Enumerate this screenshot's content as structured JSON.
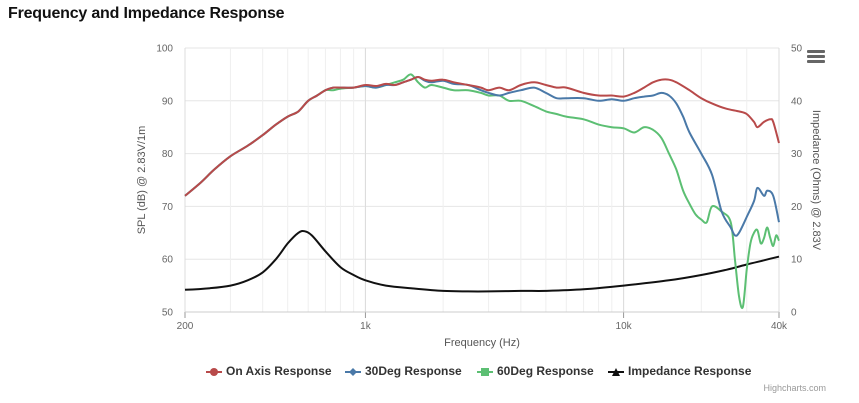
{
  "page": {
    "title": "Frequency and Impedance Response",
    "credits": "Highcharts.com"
  },
  "colors": {
    "on_axis": "#b84a4a",
    "deg30": "#4a79a8",
    "deg60": "#5cbf73",
    "impedance": "#111111",
    "grid": "#e6e6e6"
  },
  "icons": {
    "menu": "hamburger-menu-icon"
  },
  "chart_data": {
    "type": "line",
    "xlabel": "Frequency (Hz)",
    "ylabel": "SPL (dB) @ 2.83V/1m",
    "ylabel2": "Impedance (Ohms) @ 2.83V",
    "xscale": "log",
    "xlim": [
      200,
      40000
    ],
    "ylim": [
      50,
      100
    ],
    "ylim2": [
      0,
      50
    ],
    "xticks": [
      200,
      1000,
      10000,
      40000
    ],
    "xtick_labels": [
      "200",
      "1k",
      "10k",
      "40k"
    ],
    "yticks": [
      50,
      60,
      70,
      80,
      90,
      100
    ],
    "ytick_labels": [
      "50",
      "60",
      "70",
      "80",
      "90",
      "100"
    ],
    "y2ticks": [
      0,
      10,
      20,
      30,
      40,
      50
    ],
    "y2tick_labels": [
      "0",
      "10",
      "20",
      "30",
      "40",
      "50"
    ],
    "grid": true,
    "legend_position": "bottom",
    "series": [
      {
        "name": "On Axis Response",
        "axis": "left",
        "key": "on_axis",
        "points": [
          [
            200,
            72.0
          ],
          [
            230,
            74.5
          ],
          [
            260,
            77.0
          ],
          [
            300,
            79.5
          ],
          [
            350,
            81.5
          ],
          [
            400,
            83.5
          ],
          [
            450,
            85.5
          ],
          [
            500,
            87.0
          ],
          [
            550,
            88.0
          ],
          [
            600,
            90.0
          ],
          [
            650,
            91.0
          ],
          [
            700,
            92.0
          ],
          [
            750,
            92.5
          ],
          [
            800,
            92.5
          ],
          [
            900,
            92.5
          ],
          [
            1000,
            93.0
          ],
          [
            1100,
            92.8
          ],
          [
            1200,
            93.2
          ],
          [
            1300,
            93.0
          ],
          [
            1400,
            93.5
          ],
          [
            1500,
            94.0
          ],
          [
            1600,
            94.5
          ],
          [
            1700,
            94.0
          ],
          [
            1800,
            93.8
          ],
          [
            2000,
            94.0
          ],
          [
            2200,
            93.5
          ],
          [
            2500,
            93.0
          ],
          [
            2800,
            92.5
          ],
          [
            3000,
            92.0
          ],
          [
            3300,
            92.5
          ],
          [
            3600,
            92.0
          ],
          [
            4000,
            93.0
          ],
          [
            4500,
            93.5
          ],
          [
            5000,
            93.0
          ],
          [
            5500,
            92.5
          ],
          [
            6000,
            92.5
          ],
          [
            7000,
            91.5
          ],
          [
            8000,
            91.0
          ],
          [
            9000,
            91.0
          ],
          [
            10000,
            90.8
          ],
          [
            11000,
            91.5
          ],
          [
            12000,
            92.5
          ],
          [
            13000,
            93.5
          ],
          [
            14000,
            94.0
          ],
          [
            15000,
            94.0
          ],
          [
            16000,
            93.5
          ],
          [
            18000,
            92.0
          ],
          [
            20000,
            90.5
          ],
          [
            22000,
            89.5
          ],
          [
            25000,
            88.5
          ],
          [
            28000,
            88.0
          ],
          [
            30000,
            87.5
          ],
          [
            32000,
            86.0
          ],
          [
            33000,
            85.0
          ],
          [
            35000,
            86.0
          ],
          [
            37000,
            86.5
          ],
          [
            38000,
            86.0
          ],
          [
            40000,
            82.0
          ]
        ]
      },
      {
        "name": "30Deg Response",
        "axis": "left",
        "key": "deg30",
        "points": [
          [
            200,
            72.0
          ],
          [
            230,
            74.5
          ],
          [
            260,
            77.0
          ],
          [
            300,
            79.5
          ],
          [
            350,
            81.5
          ],
          [
            400,
            83.5
          ],
          [
            450,
            85.5
          ],
          [
            500,
            87.0
          ],
          [
            550,
            88.0
          ],
          [
            600,
            90.0
          ],
          [
            650,
            91.0
          ],
          [
            700,
            92.0
          ],
          [
            750,
            92.5
          ],
          [
            800,
            92.5
          ],
          [
            900,
            92.5
          ],
          [
            1000,
            92.8
          ],
          [
            1100,
            92.5
          ],
          [
            1200,
            93.0
          ],
          [
            1300,
            93.0
          ],
          [
            1400,
            93.5
          ],
          [
            1500,
            94.0
          ],
          [
            1600,
            94.5
          ],
          [
            1700,
            93.8
          ],
          [
            1800,
            93.5
          ],
          [
            2000,
            93.8
          ],
          [
            2200,
            93.2
          ],
          [
            2500,
            93.0
          ],
          [
            2800,
            92.0
          ],
          [
            3000,
            91.5
          ],
          [
            3300,
            91.0
          ],
          [
            3600,
            91.5
          ],
          [
            4000,
            92.0
          ],
          [
            4500,
            92.5
          ],
          [
            5000,
            91.5
          ],
          [
            5500,
            90.5
          ],
          [
            6000,
            90.5
          ],
          [
            7000,
            90.5
          ],
          [
            8000,
            90.0
          ],
          [
            9000,
            90.3
          ],
          [
            10000,
            90.0
          ],
          [
            11000,
            90.5
          ],
          [
            12000,
            90.8
          ],
          [
            13000,
            91.0
          ],
          [
            14000,
            91.5
          ],
          [
            15000,
            91.0
          ],
          [
            16000,
            89.5
          ],
          [
            17000,
            87.0
          ],
          [
            18000,
            84.0
          ],
          [
            20000,
            80.0
          ],
          [
            22000,
            76.0
          ],
          [
            24000,
            69.0
          ],
          [
            26000,
            66.0
          ],
          [
            27000,
            64.5
          ],
          [
            28000,
            65.0
          ],
          [
            30000,
            68.0
          ],
          [
            32000,
            71.0
          ],
          [
            33000,
            73.5
          ],
          [
            35000,
            72.0
          ],
          [
            36000,
            73.0
          ],
          [
            38000,
            72.0
          ],
          [
            40000,
            67.0
          ]
        ]
      },
      {
        "name": "60Deg Response",
        "axis": "left",
        "key": "deg60",
        "points": [
          [
            200,
            72.0
          ],
          [
            230,
            74.5
          ],
          [
            260,
            77.0
          ],
          [
            300,
            79.5
          ],
          [
            350,
            81.5
          ],
          [
            400,
            83.5
          ],
          [
            450,
            85.5
          ],
          [
            500,
            87.0
          ],
          [
            550,
            88.0
          ],
          [
            600,
            90.0
          ],
          [
            650,
            91.0
          ],
          [
            700,
            92.0
          ],
          [
            750,
            92.0
          ],
          [
            800,
            92.3
          ],
          [
            900,
            92.5
          ],
          [
            1000,
            92.8
          ],
          [
            1100,
            92.5
          ],
          [
            1200,
            93.0
          ],
          [
            1300,
            93.5
          ],
          [
            1400,
            94.0
          ],
          [
            1500,
            95.0
          ],
          [
            1600,
            93.5
          ],
          [
            1700,
            92.5
          ],
          [
            1800,
            93.0
          ],
          [
            2000,
            92.5
          ],
          [
            2200,
            92.0
          ],
          [
            2500,
            92.0
          ],
          [
            2800,
            91.5
          ],
          [
            3000,
            91.0
          ],
          [
            3300,
            91.0
          ],
          [
            3600,
            90.0
          ],
          [
            4000,
            90.0
          ],
          [
            4500,
            89.0
          ],
          [
            5000,
            88.0
          ],
          [
            5500,
            87.5
          ],
          [
            6000,
            87.0
          ],
          [
            7000,
            86.5
          ],
          [
            8000,
            85.5
          ],
          [
            9000,
            85.0
          ],
          [
            10000,
            84.8
          ],
          [
            11000,
            84.0
          ],
          [
            12000,
            85.0
          ],
          [
            13000,
            84.5
          ],
          [
            14000,
            83.0
          ],
          [
            15000,
            80.0
          ],
          [
            16000,
            77.0
          ],
          [
            17000,
            73.0
          ],
          [
            18000,
            70.5
          ],
          [
            19000,
            68.5
          ],
          [
            20000,
            67.5
          ],
          [
            21000,
            67.0
          ],
          [
            22000,
            70.0
          ],
          [
            24000,
            69.0
          ],
          [
            26000,
            67.0
          ],
          [
            27000,
            60.0
          ],
          [
            28000,
            53.0
          ],
          [
            29000,
            51.0
          ],
          [
            30000,
            58.0
          ],
          [
            31000,
            63.0
          ],
          [
            32000,
            65.0
          ],
          [
            33000,
            65.5
          ],
          [
            34000,
            63.0
          ],
          [
            35000,
            64.0
          ],
          [
            36000,
            66.0
          ],
          [
            37000,
            64.0
          ],
          [
            38000,
            62.5
          ],
          [
            39000,
            64.5
          ],
          [
            40000,
            63.5
          ]
        ]
      },
      {
        "name": "Impedance Response",
        "axis": "right",
        "key": "impedance",
        "points": [
          [
            200,
            4.2
          ],
          [
            250,
            4.5
          ],
          [
            300,
            5.0
          ],
          [
            350,
            6.0
          ],
          [
            400,
            7.5
          ],
          [
            450,
            10.0
          ],
          [
            500,
            13.0
          ],
          [
            550,
            15.0
          ],
          [
            580,
            15.3
          ],
          [
            620,
            14.5
          ],
          [
            700,
            11.5
          ],
          [
            800,
            8.5
          ],
          [
            900,
            7.0
          ],
          [
            1000,
            6.0
          ],
          [
            1200,
            5.0
          ],
          [
            1500,
            4.5
          ],
          [
            2000,
            4.0
          ],
          [
            2500,
            3.9
          ],
          [
            3000,
            3.9
          ],
          [
            4000,
            4.0
          ],
          [
            5000,
            4.0
          ],
          [
            7000,
            4.3
          ],
          [
            10000,
            5.0
          ],
          [
            15000,
            6.0
          ],
          [
            20000,
            7.0
          ],
          [
            25000,
            8.0
          ],
          [
            30000,
            9.0
          ],
          [
            35000,
            9.8
          ],
          [
            40000,
            10.5
          ]
        ]
      }
    ]
  }
}
